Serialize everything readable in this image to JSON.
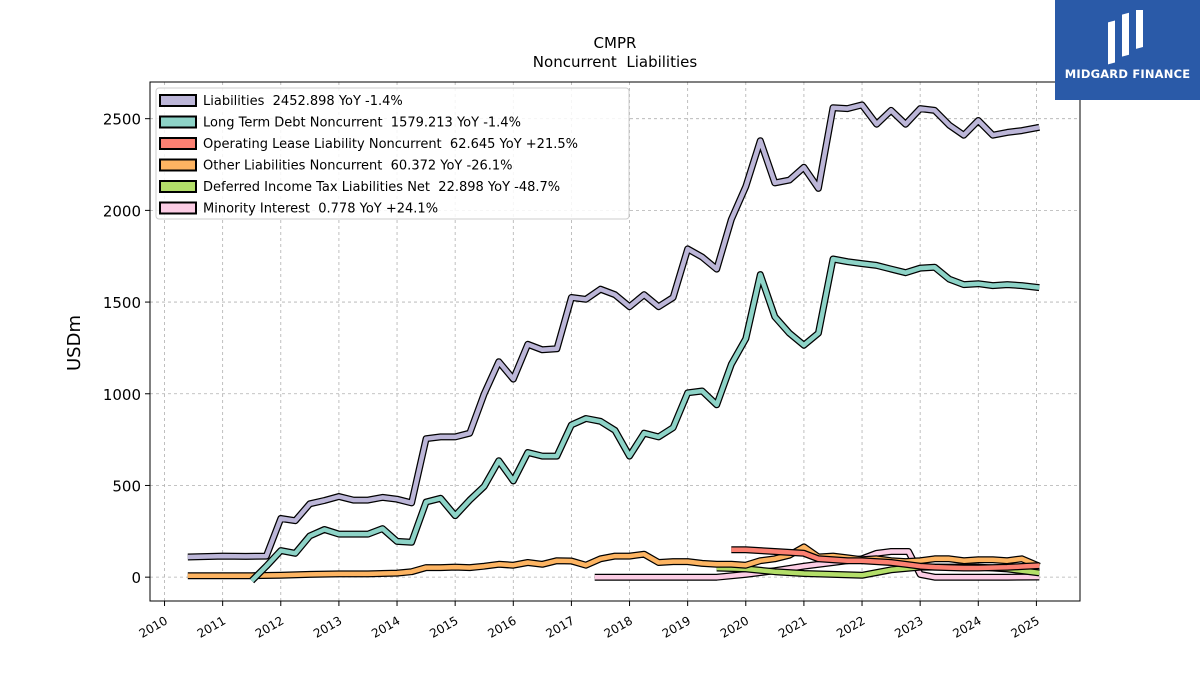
{
  "brand": {
    "name": "MIDGARD FINANCE",
    "bg_color": "#2a5aa8"
  },
  "chart_data": {
    "type": "line",
    "title": "CMPR",
    "subtitle": "Noncurrent  Liabilities",
    "xlabel": "",
    "ylabel": "USDm",
    "xlim": [
      2009.75,
      2025.75
    ],
    "ylim": [
      -130,
      2700
    ],
    "x_ticks": [
      2010,
      2011,
      2012,
      2013,
      2014,
      2015,
      2016,
      2017,
      2018,
      2019,
      2020,
      2021,
      2022,
      2023,
      2024,
      2025
    ],
    "y_ticks": [
      0,
      500,
      1000,
      1500,
      2000,
      2500
    ],
    "grid": true,
    "legend_position": "top-left",
    "series": [
      {
        "name": "Liabilities",
        "legend": "Liabilities  2452.898 YoY -1.4%",
        "color": "#bcb6d8",
        "points": [
          [
            2010.4,
            110
          ],
          [
            2011.0,
            115
          ],
          [
            2011.4,
            113
          ],
          [
            2011.75,
            115
          ],
          [
            2012.0,
            320
          ],
          [
            2012.25,
            308
          ],
          [
            2012.5,
            400
          ],
          [
            2012.75,
            418
          ],
          [
            2013.0,
            440
          ],
          [
            2013.25,
            420
          ],
          [
            2013.5,
            420
          ],
          [
            2013.75,
            435
          ],
          [
            2014.0,
            425
          ],
          [
            2014.25,
            405
          ],
          [
            2014.5,
            755
          ],
          [
            2014.75,
            765
          ],
          [
            2015.0,
            765
          ],
          [
            2015.25,
            785
          ],
          [
            2015.5,
            1000
          ],
          [
            2015.75,
            1175
          ],
          [
            2016.0,
            1080
          ],
          [
            2016.25,
            1270
          ],
          [
            2016.5,
            1240
          ],
          [
            2016.75,
            1245
          ],
          [
            2017.0,
            1525
          ],
          [
            2017.25,
            1515
          ],
          [
            2017.5,
            1570
          ],
          [
            2017.75,
            1540
          ],
          [
            2018.0,
            1475
          ],
          [
            2018.25,
            1540
          ],
          [
            2018.5,
            1475
          ],
          [
            2018.75,
            1525
          ],
          [
            2019.0,
            1790
          ],
          [
            2019.25,
            1745
          ],
          [
            2019.5,
            1680
          ],
          [
            2019.75,
            1950
          ],
          [
            2020.0,
            2130
          ],
          [
            2020.25,
            2380
          ],
          [
            2020.5,
            2150
          ],
          [
            2020.75,
            2165
          ],
          [
            2021.0,
            2235
          ],
          [
            2021.25,
            2120
          ],
          [
            2021.5,
            2560
          ],
          [
            2021.75,
            2555
          ],
          [
            2022.0,
            2575
          ],
          [
            2022.25,
            2470
          ],
          [
            2022.5,
            2545
          ],
          [
            2022.75,
            2470
          ],
          [
            2023.0,
            2555
          ],
          [
            2023.25,
            2545
          ],
          [
            2023.5,
            2465
          ],
          [
            2023.75,
            2410
          ],
          [
            2024.0,
            2490
          ],
          [
            2024.25,
            2410
          ],
          [
            2024.5,
            2425
          ],
          [
            2024.75,
            2435
          ],
          [
            2025.05,
            2453
          ]
        ]
      },
      {
        "name": "Long Term Debt Noncurrent",
        "legend": "Long Term Debt Noncurrent  1579.213 YoY -1.4%",
        "color": "#8dd3c7",
        "points": [
          [
            2011.5,
            -20
          ],
          [
            2011.75,
            60
          ],
          [
            2012.0,
            145
          ],
          [
            2012.25,
            130
          ],
          [
            2012.5,
            225
          ],
          [
            2012.75,
            260
          ],
          [
            2013.0,
            235
          ],
          [
            2013.25,
            235
          ],
          [
            2013.5,
            235
          ],
          [
            2013.75,
            265
          ],
          [
            2014.0,
            195
          ],
          [
            2014.25,
            190
          ],
          [
            2014.5,
            410
          ],
          [
            2014.75,
            430
          ],
          [
            2015.0,
            335
          ],
          [
            2015.25,
            420
          ],
          [
            2015.5,
            495
          ],
          [
            2015.75,
            635
          ],
          [
            2016.0,
            525
          ],
          [
            2016.25,
            680
          ],
          [
            2016.5,
            660
          ],
          [
            2016.75,
            660
          ],
          [
            2017.0,
            830
          ],
          [
            2017.25,
            865
          ],
          [
            2017.5,
            850
          ],
          [
            2017.75,
            800
          ],
          [
            2018.0,
            660
          ],
          [
            2018.25,
            785
          ],
          [
            2018.5,
            765
          ],
          [
            2018.75,
            815
          ],
          [
            2019.0,
            1005
          ],
          [
            2019.25,
            1015
          ],
          [
            2019.5,
            940
          ],
          [
            2019.75,
            1160
          ],
          [
            2020.0,
            1300
          ],
          [
            2020.25,
            1650
          ],
          [
            2020.5,
            1420
          ],
          [
            2020.75,
            1330
          ],
          [
            2021.0,
            1265
          ],
          [
            2021.25,
            1330
          ],
          [
            2021.5,
            1735
          ],
          [
            2021.75,
            1720
          ],
          [
            2022.0,
            1710
          ],
          [
            2022.25,
            1700
          ],
          [
            2022.5,
            1680
          ],
          [
            2022.75,
            1660
          ],
          [
            2023.0,
            1685
          ],
          [
            2023.25,
            1690
          ],
          [
            2023.5,
            1625
          ],
          [
            2023.75,
            1595
          ],
          [
            2024.0,
            1600
          ],
          [
            2024.25,
            1590
          ],
          [
            2024.5,
            1595
          ],
          [
            2024.75,
            1590
          ],
          [
            2025.05,
            1579
          ]
        ]
      },
      {
        "name": "Operating Lease Liability Noncurrent",
        "legend": "Operating Lease Liability Noncurrent  62.645 YoY +21.5%",
        "color": "#fb8072",
        "points": [
          [
            2019.75,
            150
          ],
          [
            2020.0,
            150
          ],
          [
            2020.25,
            145
          ],
          [
            2020.5,
            140
          ],
          [
            2020.75,
            135
          ],
          [
            2021.0,
            130
          ],
          [
            2021.25,
            100
          ],
          [
            2021.5,
            95
          ],
          [
            2021.75,
            90
          ],
          [
            2022.0,
            90
          ],
          [
            2022.25,
            85
          ],
          [
            2022.5,
            80
          ],
          [
            2022.75,
            70
          ],
          [
            2023.0,
            60
          ],
          [
            2023.25,
            55
          ],
          [
            2023.5,
            52
          ],
          [
            2023.75,
            50
          ],
          [
            2024.0,
            50
          ],
          [
            2024.25,
            52
          ],
          [
            2024.5,
            54
          ],
          [
            2024.75,
            58
          ],
          [
            2025.05,
            63
          ]
        ]
      },
      {
        "name": "Other Liabilities Noncurrent",
        "legend": "Other Liabilities Noncurrent  60.372 YoY -26.1%",
        "color": "#fdb462",
        "points": [
          [
            2010.4,
            8
          ],
          [
            2011.0,
            8
          ],
          [
            2011.5,
            8
          ],
          [
            2012.0,
            10
          ],
          [
            2012.5,
            15
          ],
          [
            2013.0,
            18
          ],
          [
            2013.5,
            18
          ],
          [
            2014.0,
            22
          ],
          [
            2014.25,
            30
          ],
          [
            2014.5,
            52
          ],
          [
            2014.75,
            52
          ],
          [
            2015.0,
            55
          ],
          [
            2015.25,
            52
          ],
          [
            2015.5,
            60
          ],
          [
            2015.75,
            70
          ],
          [
            2016.0,
            65
          ],
          [
            2016.25,
            80
          ],
          [
            2016.5,
            70
          ],
          [
            2016.75,
            90
          ],
          [
            2017.0,
            88
          ],
          [
            2017.25,
            65
          ],
          [
            2017.5,
            100
          ],
          [
            2017.75,
            115
          ],
          [
            2018.0,
            115
          ],
          [
            2018.25,
            125
          ],
          [
            2018.5,
            80
          ],
          [
            2018.75,
            85
          ],
          [
            2019.0,
            85
          ],
          [
            2019.25,
            75
          ],
          [
            2019.5,
            70
          ],
          [
            2019.75,
            70
          ],
          [
            2020.0,
            65
          ],
          [
            2020.25,
            90
          ],
          [
            2020.5,
            100
          ],
          [
            2020.75,
            120
          ],
          [
            2021.0,
            165
          ],
          [
            2021.25,
            110
          ],
          [
            2021.5,
            115
          ],
          [
            2021.75,
            105
          ],
          [
            2022.0,
            95
          ],
          [
            2022.25,
            100
          ],
          [
            2022.5,
            90
          ],
          [
            2022.75,
            85
          ],
          [
            2023.0,
            90
          ],
          [
            2023.25,
            100
          ],
          [
            2023.5,
            100
          ],
          [
            2023.75,
            90
          ],
          [
            2024.0,
            95
          ],
          [
            2024.25,
            95
          ],
          [
            2024.5,
            90
          ],
          [
            2024.75,
            100
          ],
          [
            2025.05,
            60
          ]
        ]
      },
      {
        "name": "Deferred Income Tax Liabilities Net",
        "legend": "Deferred Income Tax Liabilities Net  22.898 YoY -48.7%",
        "color": "#b3de69",
        "points": [
          [
            2019.5,
            50
          ],
          [
            2020.0,
            45
          ],
          [
            2020.5,
            30
          ],
          [
            2021.0,
            20
          ],
          [
            2021.5,
            15
          ],
          [
            2022.0,
            10
          ],
          [
            2022.5,
            40
          ],
          [
            2023.0,
            55
          ],
          [
            2023.5,
            55
          ],
          [
            2024.0,
            55
          ],
          [
            2024.5,
            45
          ],
          [
            2025.05,
            23
          ]
        ]
      },
      {
        "name": "Minority Interest",
        "legend": "Minority Interest  0.778 YoY +24.1%",
        "color": "#fccde5",
        "points": [
          [
            2017.4,
            0
          ],
          [
            2017.75,
            0
          ],
          [
            2018.0,
            0
          ],
          [
            2018.5,
            0
          ],
          [
            2019.0,
            0
          ],
          [
            2019.5,
            0
          ],
          [
            2020.0,
            15
          ],
          [
            2020.5,
            35
          ],
          [
            2021.0,
            60
          ],
          [
            2021.5,
            80
          ],
          [
            2022.0,
            100
          ],
          [
            2022.25,
            130
          ],
          [
            2022.5,
            140
          ],
          [
            2022.8,
            140
          ],
          [
            2023.0,
            15
          ],
          [
            2023.25,
            0
          ],
          [
            2023.5,
            0
          ],
          [
            2024.0,
            0
          ],
          [
            2024.5,
            0
          ],
          [
            2025.05,
            0.8
          ]
        ]
      }
    ]
  }
}
